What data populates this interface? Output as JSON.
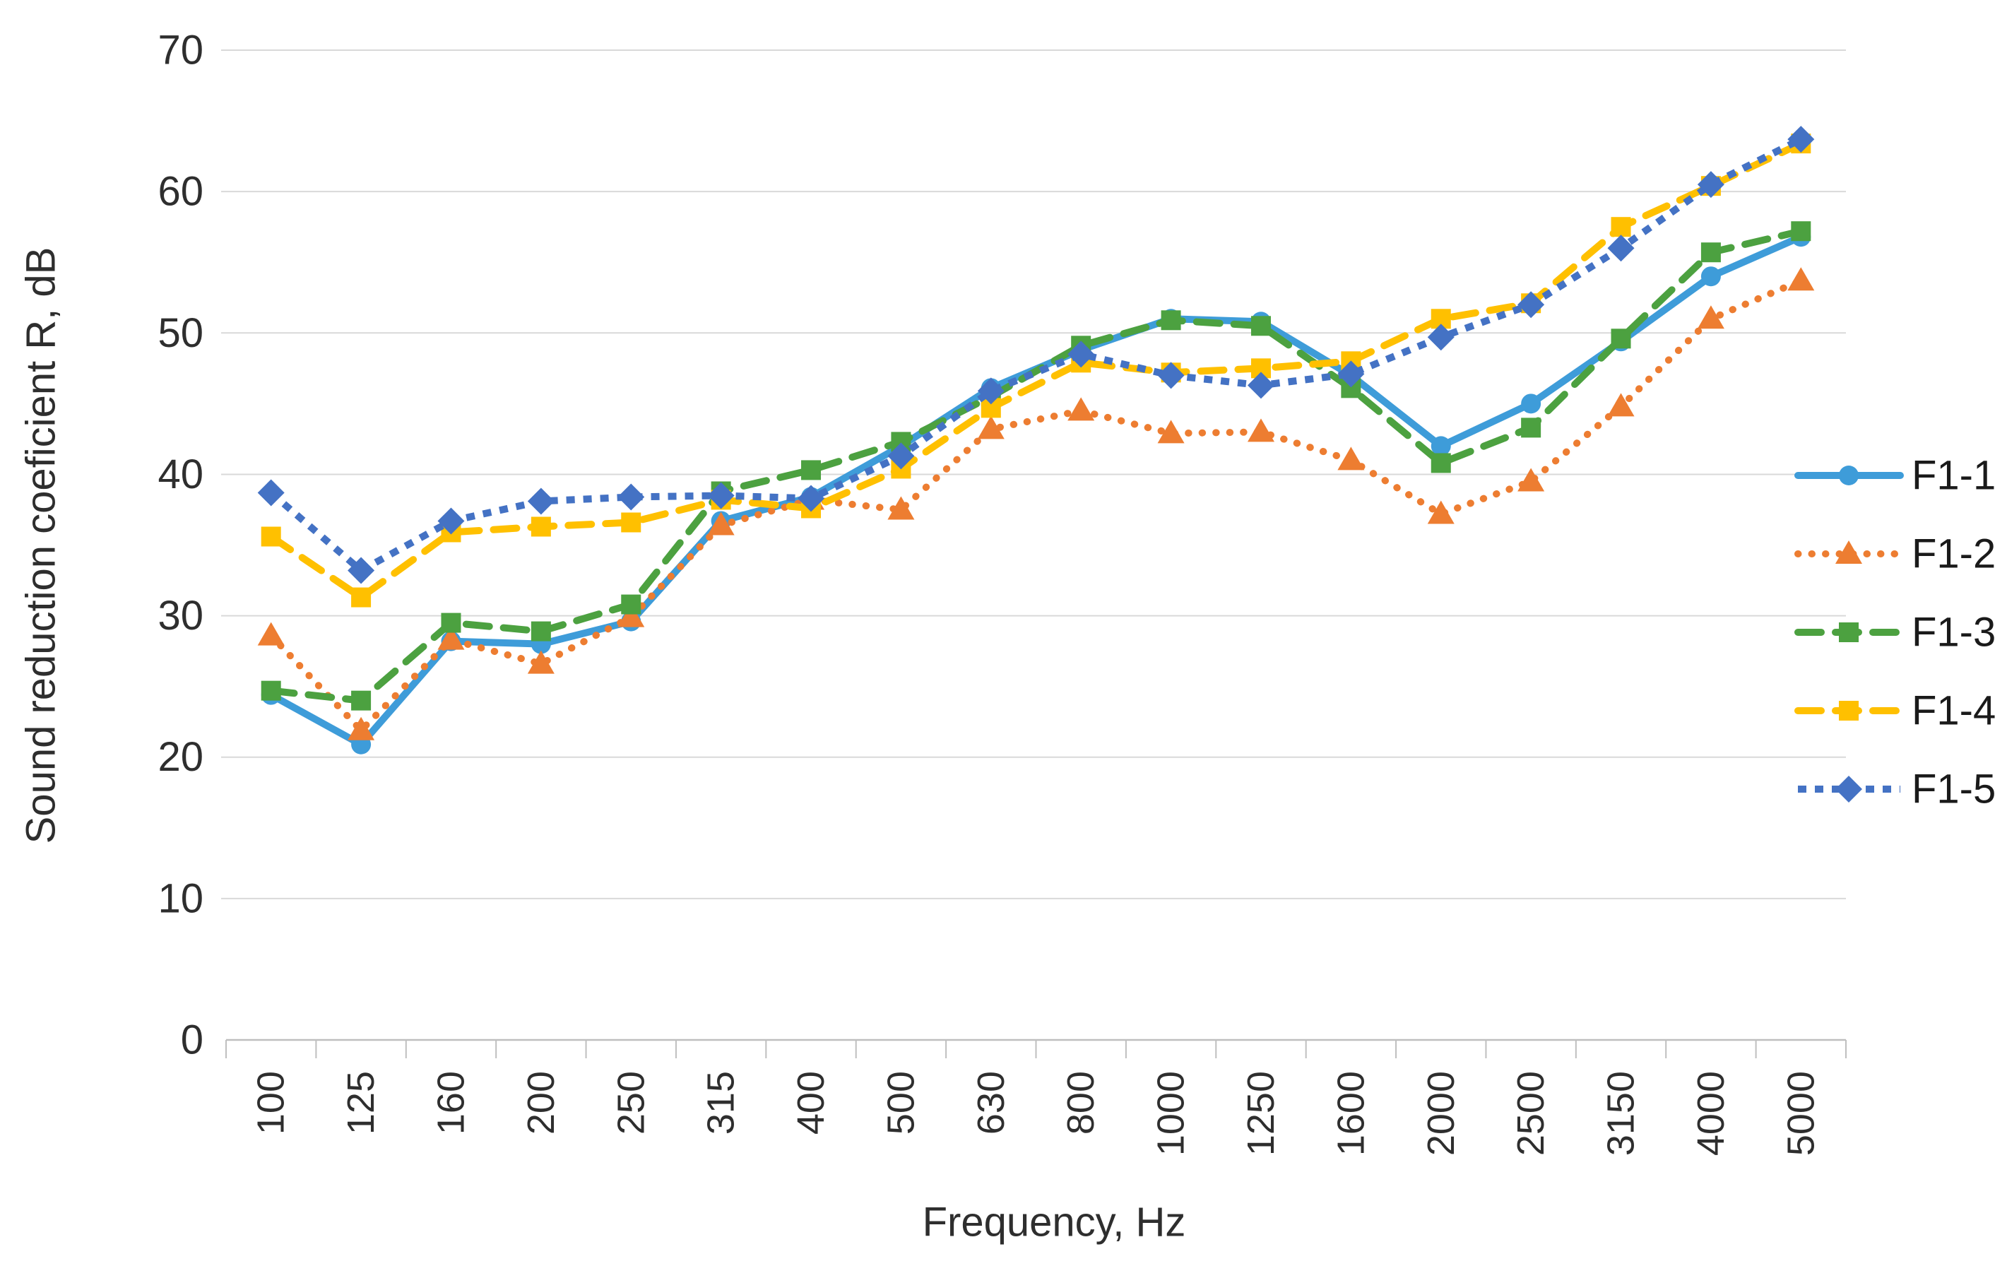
{
  "chart_data": {
    "type": "line",
    "title": "",
    "xlabel": "Frequency, Hz",
    "ylabel": "Sound reduction coeficient R, dB",
    "categories": [
      "100",
      "125",
      "160",
      "200",
      "250",
      "315",
      "400",
      "500",
      "630",
      "800",
      "1000",
      "1250",
      "1600",
      "2000",
      "2500",
      "3150",
      "4000",
      "5000"
    ],
    "ylim": [
      0,
      70
    ],
    "ytick_step": 10,
    "ytick_labels": [
      "0",
      "10",
      "20",
      "30",
      "40",
      "50",
      "60",
      "70"
    ],
    "grid": true,
    "legend_position": "right",
    "series": [
      {
        "name": "F1-1",
        "color": "#3E9CD9",
        "line_style": "solid",
        "marker": "circle",
        "values": [
          24.4,
          20.9,
          28.2,
          28.0,
          29.6,
          36.7,
          38.4,
          42.0,
          46.1,
          48.8,
          51.0,
          50.8,
          47.0,
          42.0,
          45.0,
          49.4,
          54.0,
          56.8
        ]
      },
      {
        "name": "F1-2",
        "color": "#ED7D31",
        "line_style": "dot",
        "marker": "triangle",
        "values": [
          28.6,
          21.9,
          28.3,
          26.6,
          29.9,
          36.4,
          38.2,
          37.5,
          43.2,
          44.5,
          42.9,
          43.0,
          41.0,
          37.2,
          39.5,
          44.8,
          51.0,
          53.7
        ]
      },
      {
        "name": "F1-3",
        "color": "#4CA140",
        "line_style": "dash",
        "marker": "square",
        "values": [
          24.7,
          24.0,
          29.5,
          28.9,
          30.8,
          38.8,
          40.3,
          42.3,
          45.5,
          49.1,
          50.9,
          50.5,
          46.1,
          40.8,
          43.3,
          49.6,
          55.7,
          57.2
        ]
      },
      {
        "name": "F1-4",
        "color": "#FFC000",
        "line_style": "dash",
        "marker": "square",
        "values": [
          35.6,
          31.3,
          35.9,
          36.3,
          36.6,
          38.2,
          37.6,
          40.4,
          44.7,
          47.9,
          47.2,
          47.5,
          48.0,
          51.0,
          52.1,
          57.5,
          60.4,
          63.4
        ]
      },
      {
        "name": "F1-5",
        "color": "#4472C4",
        "line_style": "square-dot",
        "marker": "diamond",
        "values": [
          38.7,
          33.2,
          36.7,
          38.1,
          38.4,
          38.5,
          38.3,
          41.3,
          45.9,
          48.5,
          47.0,
          46.3,
          47.1,
          49.7,
          52.0,
          56.0,
          60.5,
          63.7
        ]
      }
    ],
    "colors": {
      "grid": "#D9D9D9",
      "axis": "#BFBFBF",
      "text": "#2E2E2E"
    }
  }
}
